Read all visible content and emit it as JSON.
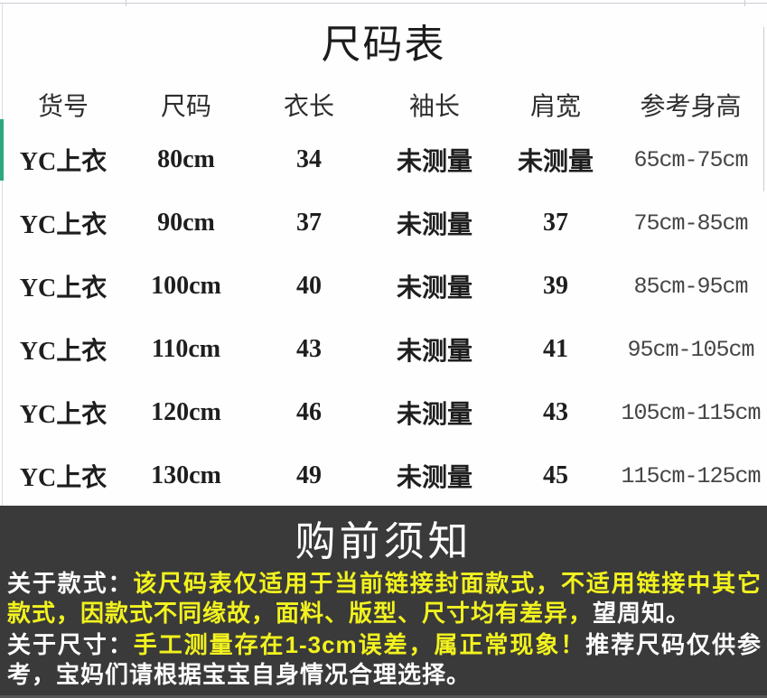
{
  "title": "尺码表",
  "table": {
    "headers": [
      "货号",
      "尺码",
      "衣长",
      "袖长",
      "肩宽",
      "参考身高"
    ],
    "rows": [
      [
        "YC上衣",
        "80cm",
        "34",
        "未测量",
        "未测量",
        "65cm-75cm"
      ],
      [
        "YC上衣",
        "90cm",
        "37",
        "未测量",
        "37",
        "75cm-85cm"
      ],
      [
        "YC上衣",
        "100cm",
        "40",
        "未测量",
        "39",
        "85cm-95cm"
      ],
      [
        "YC上衣",
        "110cm",
        "43",
        "未测量",
        "41",
        "95cm-105cm"
      ],
      [
        "YC上衣",
        "120cm",
        "46",
        "未测量",
        "43",
        "105cm-115cm"
      ],
      [
        "YC上衣",
        "130cm",
        "49",
        "未测量",
        "45",
        "115cm-125cm"
      ]
    ]
  },
  "notice": {
    "title": "购前须知",
    "paragraphs": [
      {
        "segments": [
          {
            "text": "关于款式：",
            "color": "white"
          },
          {
            "text": "该尺码表仅适用于当前链接封面款式，不适用链接中其它款式，因款式不同缘故，面料、版型、尺寸均有差异，",
            "color": "yellow"
          },
          {
            "text": "望周知。",
            "color": "white"
          }
        ]
      },
      {
        "segments": [
          {
            "text": "关于尺寸：",
            "color": "white"
          },
          {
            "text": "手工测量存在1-3cm误差，属正常现象！",
            "color": "yellow"
          },
          {
            "text": "推荐尺码仅供参考，宝妈们请根据宝宝自身情况合理选择。",
            "color": "white"
          }
        ]
      }
    ]
  },
  "colors": {
    "notice_bg": "#3a3a3a",
    "highlight": "#f2f21f",
    "notice_text": "#fdfdfd",
    "table_text": "#1e1e1e",
    "height_col_text": "#454545",
    "left_accent": "#2ea97c",
    "hairline": "#ccccd4"
  }
}
